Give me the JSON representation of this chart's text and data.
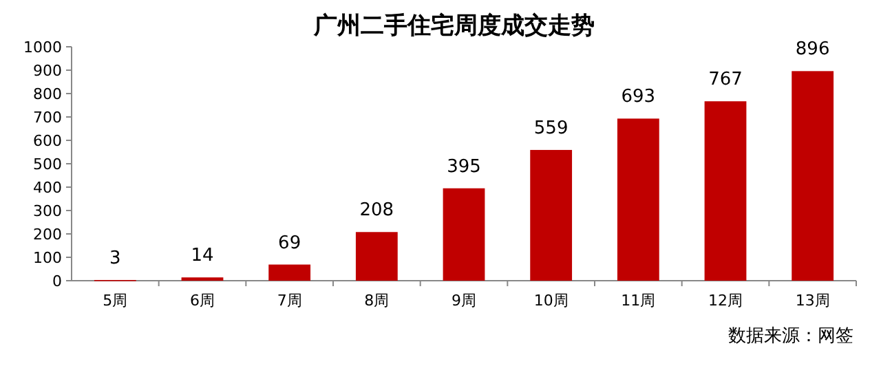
{
  "chart_data": {
    "type": "bar",
    "title": "广州二手住宅周度成交走势",
    "categories": [
      "5周",
      "6周",
      "7周",
      "8周",
      "9周",
      "10周",
      "11周",
      "12周",
      "13周"
    ],
    "values": [
      3,
      14,
      69,
      208,
      395,
      559,
      693,
      767,
      896
    ],
    "color": "#c00000",
    "ylim": [
      0,
      1000
    ],
    "yticks": [
      0,
      100,
      200,
      300,
      400,
      500,
      600,
      700,
      800,
      900,
      1000
    ],
    "data_labels": true,
    "annotations": [
      "数据来源：网签"
    ]
  }
}
